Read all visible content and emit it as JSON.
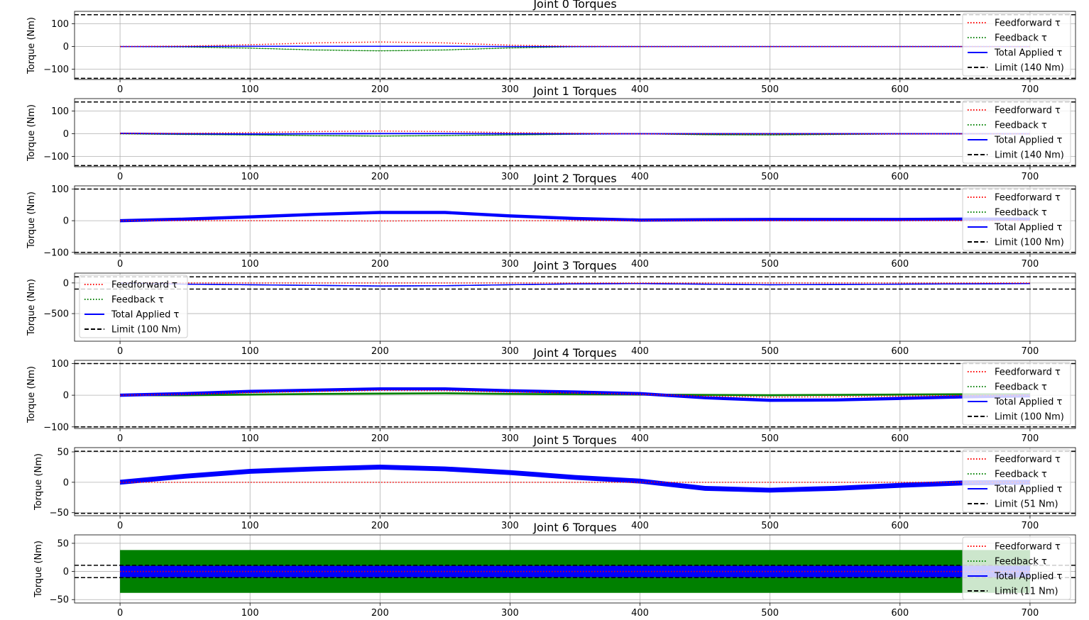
{
  "chart_data": [
    {
      "type": "line",
      "title": "Joint 0 Torques",
      "ylabel": "Torque (Nm)",
      "xlim": [
        -35,
        735
      ],
      "ylim": [
        -145,
        155
      ],
      "xticks": [
        0,
        100,
        200,
        300,
        400,
        500,
        600,
        700
      ],
      "yticks": [
        -100,
        0,
        100
      ],
      "grid": true,
      "legend_loc": "right",
      "series": [
        {
          "name": "Feedforward τ",
          "color": "#ff0000",
          "style": "dotted",
          "x": [
            0,
            50,
            100,
            150,
            200,
            250,
            300,
            350,
            400,
            450,
            500,
            550,
            600,
            650,
            700
          ],
          "y": [
            0,
            2,
            8,
            16,
            20,
            16,
            6,
            1,
            0,
            0,
            0,
            0,
            0,
            0,
            0
          ]
        },
        {
          "name": "Feedback τ",
          "color": "#008000",
          "style": "dotted",
          "x": [
            0,
            50,
            100,
            150,
            200,
            250,
            300,
            350,
            400,
            450,
            500,
            550,
            600,
            650,
            700
          ],
          "y": [
            0,
            -2,
            -7,
            -15,
            -19,
            -15,
            -6,
            -1,
            0,
            0,
            0,
            0,
            0,
            0,
            0
          ]
        },
        {
          "name": "Total Applied τ",
          "color": "#0000ff",
          "style": "solid",
          "x": [
            0,
            50,
            100,
            150,
            200,
            250,
            300,
            350,
            400,
            450,
            500,
            550,
            600,
            650,
            700
          ],
          "y": [
            0,
            0,
            1,
            1,
            1,
            1,
            0,
            0,
            0,
            0,
            0,
            0,
            0,
            0,
            0
          ]
        },
        {
          "name": "Limit (140 Nm)",
          "color": "#000000",
          "style": "dashed",
          "limit": 140
        }
      ]
    },
    {
      "type": "line",
      "title": "Joint 1 Torques",
      "ylabel": "Torque (Nm)",
      "xlim": [
        -35,
        735
      ],
      "ylim": [
        -145,
        155
      ],
      "xticks": [
        0,
        100,
        200,
        300,
        400,
        500,
        600,
        700
      ],
      "yticks": [
        -100,
        0,
        100
      ],
      "grid": true,
      "legend_loc": "right",
      "series": [
        {
          "name": "Feedforward τ",
          "color": "#ff0000",
          "style": "dotted",
          "x": [
            0,
            50,
            100,
            150,
            200,
            250,
            300,
            350,
            400,
            450,
            500,
            550,
            600,
            650,
            700
          ],
          "y": [
            2,
            2,
            5,
            10,
            12,
            10,
            5,
            2,
            0,
            0,
            0,
            0,
            0,
            0,
            0
          ]
        },
        {
          "name": "Feedback τ",
          "color": "#008000",
          "style": "dotted",
          "x": [
            0,
            50,
            100,
            150,
            200,
            250,
            300,
            350,
            400,
            450,
            500,
            550,
            600,
            650,
            700
          ],
          "y": [
            0,
            -3,
            -5,
            -8,
            -10,
            -8,
            -5,
            -2,
            0,
            -4,
            -5,
            -3,
            -1,
            0,
            0
          ]
        },
        {
          "name": "Total Applied τ",
          "color": "#0000ff",
          "style": "solid",
          "x": [
            0,
            50,
            100,
            150,
            200,
            250,
            300,
            350,
            400,
            450,
            500,
            550,
            600,
            650,
            700
          ],
          "y": [
            2,
            0,
            -1,
            0,
            1,
            1,
            0,
            0,
            0,
            0,
            0,
            0,
            0,
            0,
            0
          ]
        },
        {
          "name": "Limit (140 Nm)",
          "color": "#000000",
          "style": "dashed",
          "limit": 140
        }
      ]
    },
    {
      "type": "line",
      "title": "Joint 2 Torques",
      "ylabel": "Torque (Nm)",
      "xlim": [
        -35,
        735
      ],
      "ylim": [
        -105,
        110
      ],
      "xticks": [
        0,
        100,
        200,
        300,
        400,
        500,
        600,
        700
      ],
      "yticks": [
        -100,
        0,
        100
      ],
      "grid": true,
      "legend_loc": "right",
      "series": [
        {
          "name": "Feedforward τ",
          "color": "#ff0000",
          "style": "dotted",
          "x": [
            0,
            50,
            100,
            150,
            200,
            250,
            300,
            350,
            400,
            450,
            500,
            550,
            600,
            650,
            700
          ],
          "y": [
            0,
            0,
            0,
            0,
            -1,
            0,
            0,
            0,
            0,
            0,
            0,
            0,
            0,
            0,
            0
          ]
        },
        {
          "name": "Feedback τ",
          "color": "#008000",
          "style": "dotted",
          "x": [
            0,
            50,
            100,
            150,
            200,
            250,
            300,
            350,
            400,
            450,
            500,
            550,
            600,
            650,
            700
          ],
          "y": [
            0,
            5,
            12,
            20,
            27,
            26,
            15,
            7,
            2,
            3,
            4,
            4,
            4,
            5,
            5
          ]
        },
        {
          "name": "Total Applied τ",
          "color": "#0000ff",
          "style": "solid",
          "x": [
            0,
            50,
            100,
            150,
            200,
            250,
            300,
            350,
            400,
            450,
            500,
            550,
            600,
            650,
            700
          ],
          "y": [
            0,
            5,
            12,
            20,
            26,
            26,
            15,
            7,
            2,
            3,
            4,
            4,
            4,
            5,
            5
          ]
        },
        {
          "name": "Limit (100 Nm)",
          "color": "#000000",
          "style": "dashed",
          "limit": 100
        }
      ]
    },
    {
      "type": "line",
      "title": "Joint 3 Torques",
      "ylabel": "Torque (Nm)",
      "xlim": [
        -35,
        735
      ],
      "ylim": [
        -950,
        160
      ],
      "xticks": [
        0,
        100,
        200,
        300,
        400,
        500,
        600,
        700
      ],
      "yticks": [
        -500,
        0
      ],
      "grid": true,
      "legend_loc": "left",
      "series": [
        {
          "name": "Feedforward τ",
          "color": "#ff0000",
          "style": "dotted",
          "x": [
            0,
            50,
            100,
            150,
            200,
            250,
            300,
            350,
            400,
            450,
            500,
            550,
            600,
            650,
            700
          ],
          "y": [
            0,
            0,
            0,
            0,
            0,
            0,
            0,
            0,
            0,
            0,
            0,
            0,
            0,
            0,
            0
          ]
        },
        {
          "name": "Feedback τ",
          "color": "#008000",
          "style": "dotted",
          "x": [
            0,
            50,
            100,
            150,
            200,
            250,
            300,
            350,
            400,
            450,
            500,
            550,
            600,
            650,
            700
          ],
          "y": [
            0,
            -20,
            -30,
            -40,
            -50,
            -45,
            -30,
            -15,
            -10,
            -20,
            -30,
            -25,
            -20,
            -15,
            -10
          ]
        },
        {
          "name": "Total Applied τ",
          "color": "#0000ff",
          "style": "solid",
          "x": [
            0,
            50,
            100,
            150,
            200,
            250,
            300,
            350,
            400,
            450,
            500,
            550,
            600,
            650,
            700
          ],
          "y": [
            0,
            -20,
            -30,
            -40,
            -50,
            -45,
            -30,
            -15,
            -10,
            -20,
            -30,
            -25,
            -20,
            -15,
            -10
          ]
        },
        {
          "name": "Limit (100 Nm)",
          "color": "#000000",
          "style": "dashed",
          "limit": 100
        }
      ]
    },
    {
      "type": "line",
      "title": "Joint 4 Torques",
      "ylabel": "Torque (Nm)",
      "xlim": [
        -35,
        735
      ],
      "ylim": [
        -105,
        110
      ],
      "xticks": [
        0,
        100,
        200,
        300,
        400,
        500,
        600,
        700
      ],
      "yticks": [
        -100,
        0,
        100
      ],
      "grid": true,
      "legend_loc": "right",
      "series": [
        {
          "name": "Feedforward τ",
          "color": "#ff0000",
          "style": "dotted",
          "x": [
            0,
            50,
            100,
            150,
            200,
            250,
            300,
            350,
            400,
            450,
            500,
            550,
            600,
            650,
            700
          ],
          "y": [
            0,
            3,
            8,
            12,
            15,
            14,
            10,
            7,
            3,
            -3,
            -6,
            -5,
            -3,
            -1,
            0
          ]
        },
        {
          "name": "Feedback τ",
          "color": "#008000",
          "style": "dotted",
          "x": [
            0,
            50,
            100,
            150,
            200,
            250,
            300,
            350,
            400,
            450,
            500,
            550,
            600,
            650,
            700
          ],
          "y": [
            0,
            0,
            2,
            4,
            5,
            6,
            4,
            3,
            2,
            1,
            0,
            1,
            2,
            3,
            3
          ]
        },
        {
          "name": "Total Applied τ",
          "color": "#0000ff",
          "style": "solid",
          "x": [
            0,
            50,
            100,
            150,
            200,
            250,
            300,
            350,
            400,
            450,
            500,
            550,
            600,
            650,
            700
          ],
          "y": [
            0,
            5,
            12,
            16,
            20,
            20,
            14,
            10,
            5,
            -8,
            -16,
            -15,
            -10,
            -5,
            -2
          ]
        },
        {
          "name": "Limit (100 Nm)",
          "color": "#000000",
          "style": "dashed",
          "limit": 100
        }
      ]
    },
    {
      "type": "line",
      "title": "Joint 5 Torques",
      "ylabel": "Torque (Nm)",
      "xlim": [
        -35,
        735
      ],
      "ylim": [
        -55,
        57
      ],
      "xticks": [
        0,
        100,
        200,
        300,
        400,
        500,
        600,
        700
      ],
      "yticks": [
        -50,
        0,
        50
      ],
      "grid": true,
      "legend_loc": "right",
      "series": [
        {
          "name": "Feedforward τ",
          "color": "#ff0000",
          "style": "dotted",
          "x": [
            0,
            50,
            100,
            150,
            200,
            250,
            300,
            350,
            400,
            450,
            500,
            550,
            600,
            650,
            700
          ],
          "y": [
            0,
            0,
            0,
            0,
            0,
            0,
            0,
            0,
            0,
            0,
            0,
            0,
            0,
            0,
            0
          ]
        },
        {
          "name": "Feedback τ",
          "color": "#008000",
          "style": "dotted",
          "x": [
            0,
            50,
            100,
            150,
            200,
            250,
            300,
            350,
            400,
            450,
            500,
            550,
            600,
            650,
            700
          ],
          "y": [
            0,
            10,
            18,
            22,
            25,
            22,
            16,
            8,
            2,
            -10,
            -13,
            -10,
            -5,
            -1,
            0
          ]
        },
        {
          "name": "Total Applied τ",
          "color": "#0000ff",
          "style": "solid",
          "x": [
            0,
            50,
            100,
            150,
            200,
            250,
            300,
            350,
            400,
            450,
            500,
            550,
            600,
            650,
            700
          ],
          "y": [
            0,
            10,
            18,
            22,
            25,
            22,
            16,
            8,
            2,
            -10,
            -13,
            -10,
            -5,
            -1,
            0
          ]
        },
        {
          "name": "Limit (51 Nm)",
          "color": "#000000",
          "style": "dashed",
          "limit": 51
        }
      ]
    },
    {
      "type": "line",
      "title": "Joint 6 Torques",
      "ylabel": "Torque (Nm)",
      "xlim": [
        -35,
        735
      ],
      "ylim": [
        -56,
        65
      ],
      "xticks": [
        0,
        100,
        200,
        300,
        400,
        500,
        600,
        700
      ],
      "yticks": [
        -50,
        0,
        50
      ],
      "grid": true,
      "legend_loc": "right",
      "series": [
        {
          "name": "Feedforward τ",
          "color": "#ff0000",
          "style": "dotted",
          "x": [
            0,
            50,
            100,
            150,
            200,
            250,
            300,
            350,
            400,
            450,
            500,
            550,
            600,
            650,
            700
          ],
          "y": [
            0,
            0,
            0,
            0,
            0,
            0,
            0,
            0,
            0,
            0,
            0,
            0,
            0,
            0,
            0
          ]
        },
        {
          "name": "Feedback τ",
          "color": "#008000",
          "style": "dotted",
          "x": [
            0,
            50,
            100,
            150,
            200,
            250,
            300,
            350,
            400,
            450,
            500,
            550,
            600,
            650,
            700
          ],
          "y": [
            0,
            0,
            0,
            0,
            0,
            0,
            0,
            0,
            0,
            0,
            0,
            0,
            0,
            0,
            0
          ]
        },
        {
          "name": "Total Applied τ",
          "color": "#0000ff",
          "style": "solid",
          "x": [
            0,
            50,
            100,
            150,
            200,
            250,
            300,
            350,
            400,
            450,
            500,
            550,
            600,
            650,
            700
          ],
          "y": [
            0,
            0,
            0,
            0,
            0,
            0,
            0,
            0,
            0,
            0,
            0,
            0,
            0,
            0,
            0
          ]
        },
        {
          "name": "Limit (11 Nm)",
          "color": "#000000",
          "style": "dashed",
          "limit": 11
        }
      ]
    }
  ]
}
